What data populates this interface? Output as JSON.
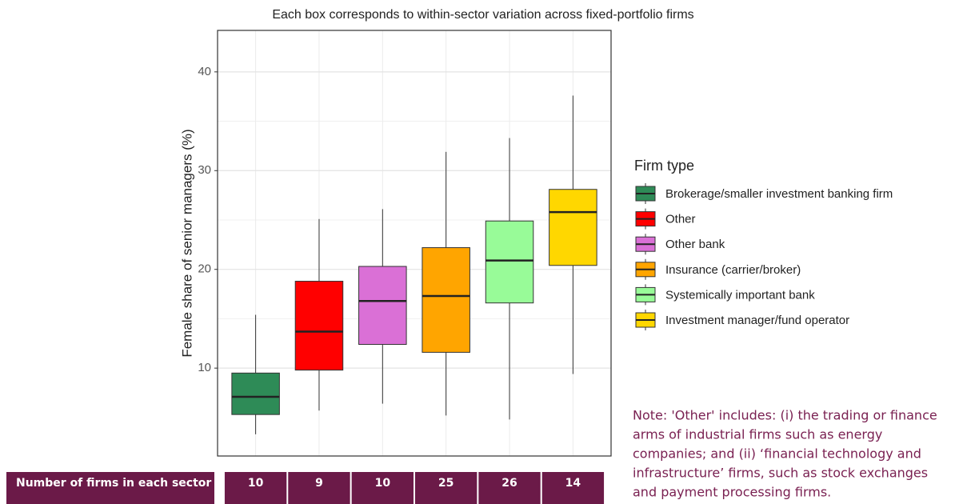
{
  "chart_data": {
    "type": "box",
    "title": "Each box corresponds to within-sector variation across fixed-portfolio firms",
    "ylabel": "Female share of senior managers (%)",
    "legend_title": "Firm type",
    "categories": [
      "Brokerage/smaller investment banking firm",
      "Other",
      "Other bank",
      "Insurance (carrier/broker)",
      "Systemically important bank",
      "Investment manager/fund operator"
    ],
    "colors": [
      "#2e8b57",
      "#ff0000",
      "#da70d6",
      "#ffa500",
      "#98fb98",
      "#ffd700"
    ],
    "boxes": [
      {
        "min": 3.3,
        "q1": 5.3,
        "median": 7.1,
        "q3": 9.5,
        "max": 15.4
      },
      {
        "min": 5.7,
        "q1": 9.8,
        "median": 13.7,
        "q3": 18.8,
        "max": 25.1
      },
      {
        "min": 6.4,
        "q1": 12.4,
        "median": 16.8,
        "q3": 20.3,
        "max": 26.1
      },
      {
        "min": 5.2,
        "q1": 11.6,
        "median": 17.3,
        "q3": 22.2,
        "max": 31.9
      },
      {
        "min": 4.8,
        "q1": 16.6,
        "median": 20.9,
        "q3": 24.9,
        "max": 33.3
      },
      {
        "min": 9.4,
        "q1": 20.4,
        "median": 25.8,
        "q3": 28.1,
        "max": 37.6
      }
    ],
    "ylim": [
      1.1,
      44.2
    ],
    "yticks": [
      10,
      20,
      30,
      40
    ],
    "minor_yticks": [
      15,
      25,
      35
    ],
    "grid": true,
    "legend": "right"
  },
  "table": {
    "header": "Number of firms in each sector",
    "counts": [
      "10",
      "9",
      "10",
      "25",
      "26",
      "14"
    ]
  },
  "note": [
    "Note: 'Other' includes: (i) the trading or finance",
    "arms of industrial firms such as energy",
    "companies; and (ii) ‘financial technology and",
    "infrastructure’ firms, such as stock exchanges",
    "and payment processing firms."
  ]
}
